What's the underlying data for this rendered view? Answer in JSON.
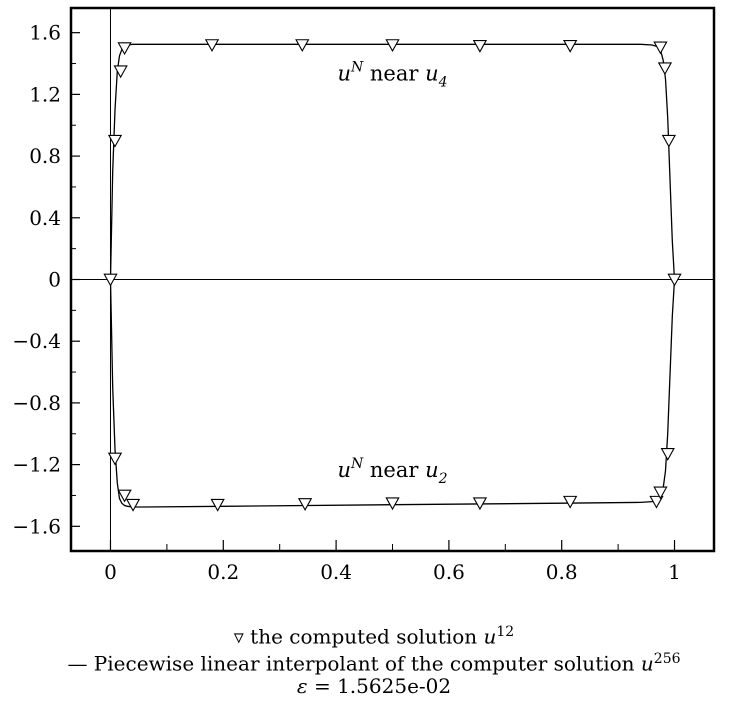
{
  "chart_data": {
    "type": "line",
    "title": "",
    "xlabel": "",
    "ylabel": "",
    "xlim": [
      -0.07,
      1.07
    ],
    "ylim": [
      -1.76,
      1.76
    ],
    "x_ticks": [
      0,
      0.2,
      0.4,
      0.6,
      0.8,
      1
    ],
    "x_tick_labels": [
      "0",
      "0.2",
      "0.4",
      "0.6",
      "0.8",
      "1"
    ],
    "x_minor_ticks": [
      0.1,
      0.3,
      0.5,
      0.7,
      0.9
    ],
    "y_ticks": [
      -1.6,
      -1.2,
      -0.8,
      -0.4,
      0,
      0.4,
      0.8,
      1.2,
      1.6
    ],
    "y_tick_labels": [
      "-1.6",
      "-1.2",
      "-0.8",
      "-0.4",
      "0",
      "0.4",
      "0.8",
      "1.2",
      "1.6"
    ],
    "y_minor_ticks": [
      -1.4,
      -1.0,
      -0.6,
      -0.2,
      0.2,
      0.6,
      1.0,
      1.4
    ],
    "grid": false,
    "reference_lines": {
      "x": 0,
      "y": 0
    },
    "series": [
      {
        "style": "line",
        "x": [
          0,
          0.004,
          0.008,
          0.012,
          0.016,
          0.02,
          0.025,
          0.03,
          0.04,
          0.06,
          0.2,
          0.5,
          0.8,
          0.94,
          0.96,
          0.97,
          0.975,
          0.98,
          0.984,
          0.988,
          0.992,
          0.996,
          1.0
        ],
        "y": [
          0,
          0.7,
          1.1,
          1.35,
          1.45,
          1.49,
          1.51,
          1.52,
          1.525,
          1.525,
          1.525,
          1.525,
          1.525,
          1.525,
          1.52,
          1.51,
          1.49,
          1.42,
          1.3,
          1.05,
          0.65,
          0.25,
          0
        ]
      },
      {
        "style": "line",
        "x": [
          0,
          0.004,
          0.008,
          0.012,
          0.016,
          0.02,
          0.025,
          0.03,
          0.04,
          0.06,
          0.2,
          0.5,
          0.8,
          0.94,
          0.96,
          0.97,
          0.975,
          0.98,
          0.984,
          0.988,
          0.992,
          0.996,
          1.0
        ],
        "y": [
          0,
          -0.7,
          -1.1,
          -1.32,
          -1.42,
          -1.45,
          -1.465,
          -1.47,
          -1.475,
          -1.475,
          -1.47,
          -1.46,
          -1.45,
          -1.445,
          -1.44,
          -1.43,
          -1.41,
          -1.35,
          -1.24,
          -1.0,
          -0.62,
          -0.24,
          0
        ]
      },
      {
        "style": "markers",
        "marker": "down-triangle",
        "x": [
          0.0,
          0.008,
          0.018,
          0.025,
          0.18,
          0.34,
          0.5,
          0.655,
          0.815,
          0.975,
          0.983,
          0.99,
          1.0
        ],
        "y": [
          0.0,
          0.9,
          1.35,
          1.5,
          1.52,
          1.52,
          1.52,
          1.515,
          1.515,
          1.505,
          1.37,
          0.9,
          0.0
        ]
      },
      {
        "style": "markers",
        "marker": "down-triangle",
        "x": [
          0.008,
          0.025,
          0.04,
          0.19,
          0.345,
          0.5,
          0.655,
          0.815,
          0.968,
          0.975,
          0.988
        ],
        "y": [
          -1.16,
          -1.4,
          -1.46,
          -1.46,
          -1.455,
          -1.45,
          -1.45,
          -1.44,
          -1.44,
          -1.38,
          -1.13
        ]
      }
    ],
    "annotations": [
      {
        "base": "u",
        "sup": "N",
        "mid": " near ",
        "sub_base": "u",
        "sub": "4",
        "x": 0.5,
        "y": 1.29
      },
      {
        "base": "u",
        "sup": "N",
        "mid": " near ",
        "sub_base": "u",
        "sub": "2",
        "x": 0.5,
        "y": -1.28
      }
    ]
  },
  "caption": {
    "line1_prefix": "▿ the computed solution ",
    "line1_var": "u",
    "line1_sup": "12",
    "line2_prefix": "— Piecewise linear interpolant of the computer solution ",
    "line2_var": "u",
    "line2_sup": "256",
    "line3_var": "ε",
    "line3_rest": " = 1.5625e-02"
  }
}
